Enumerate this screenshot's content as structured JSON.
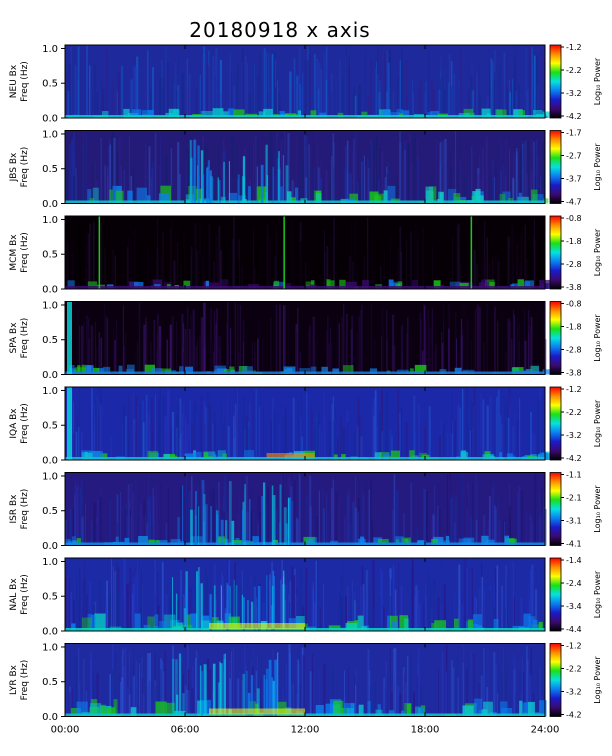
{
  "title": "20180918 x axis",
  "side_note": "",
  "chart_data": {
    "type": "heatmap",
    "title": "20180918 x axis",
    "xlabel": "",
    "x_ticks": [
      "00:00",
      "06:00",
      "12:00",
      "18:00",
      "24:00"
    ],
    "xlim": [
      0,
      24
    ],
    "ylim": [
      0,
      1.05
    ],
    "y_ticks": [
      "0.0",
      "0.5",
      "1.0"
    ],
    "ylabel": "Freq (Hz)",
    "colorbar_label": "Log₁₀ Power",
    "colormap": [
      "#000000",
      "#3a0a70",
      "#1b1bc8",
      "#0b7ff0",
      "#07e0e0",
      "#18e018",
      "#ffff00",
      "#ff8c00",
      "#ff0000"
    ],
    "panels": [
      {
        "station": "NEU Bx",
        "cbar_ticks": [
          "-1.2",
          "-2.2",
          "-3.2",
          "-4.2"
        ]
      },
      {
        "station": "JBS Bx",
        "cbar_ticks": [
          "-1.7",
          "-2.7",
          "-3.7",
          "-4.7"
        ]
      },
      {
        "station": "MCM Bx",
        "cbar_ticks": [
          "-0.8",
          "-1.8",
          "-2.8",
          "-3.8"
        ]
      },
      {
        "station": "SPA Bx",
        "cbar_ticks": [
          "-0.8",
          "-1.8",
          "-2.8",
          "-3.8"
        ]
      },
      {
        "station": "IQA Bx",
        "cbar_ticks": [
          "-1.2",
          "-2.2",
          "-3.2",
          "-4.2"
        ]
      },
      {
        "station": "ISR Bx",
        "cbar_ticks": [
          "-1.1",
          "-2.1",
          "-3.1",
          "-4.1"
        ]
      },
      {
        "station": "NAL Bx",
        "cbar_ticks": [
          "-1.4",
          "-2.4",
          "-3.4",
          "-4.4"
        ]
      },
      {
        "station": "LYR Bx",
        "cbar_ticks": [
          "-1.2",
          "-2.2",
          "-3.2",
          "-4.2"
        ]
      }
    ]
  }
}
